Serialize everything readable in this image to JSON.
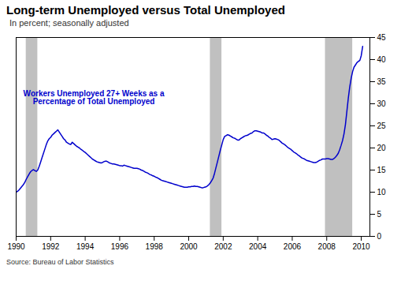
{
  "chart_data": {
    "type": "line",
    "title": "Long-term Unemployed versus Total Unemployed",
    "subtitle": "In percent; seasonally adjusted",
    "source": "Source: Bureau of Labor Statistics",
    "annotation": {
      "text": "Workers Unemployed 27+ Weeks as a\nPercentage of Total Unemployed",
      "x": 1994.5,
      "y": 33.0,
      "color": "#0000CC"
    },
    "bands": {
      "color": "#C0C0C0",
      "ranges": [
        [
          1990.58,
          1991.25
        ],
        [
          2001.25,
          2001.92
        ],
        [
          2007.92,
          2009.5
        ]
      ]
    },
    "color": "#0000CC",
    "grid": false,
    "xlim": [
      1990.0,
      2010.5
    ],
    "ylim": [
      0,
      45
    ],
    "xticks": [
      1990,
      1992,
      1994,
      1996,
      1998,
      2000,
      2002,
      2004,
      2006,
      2008,
      2010
    ],
    "yticks": [
      0,
      5,
      10,
      15,
      20,
      25,
      30,
      35,
      40,
      45
    ],
    "x": [
      1990.0,
      1990.083,
      1990.167,
      1990.25,
      1990.333,
      1990.417,
      1990.5,
      1990.583,
      1990.667,
      1990.75,
      1990.833,
      1990.917,
      1991.0,
      1991.083,
      1991.167,
      1991.25,
      1991.333,
      1991.417,
      1991.5,
      1991.583,
      1991.667,
      1991.75,
      1991.833,
      1991.917,
      1992.0,
      1992.083,
      1992.167,
      1992.25,
      1992.333,
      1992.417,
      1992.5,
      1992.583,
      1992.667,
      1992.75,
      1992.833,
      1992.917,
      1993.0,
      1993.083,
      1993.167,
      1993.25,
      1993.333,
      1993.417,
      1993.5,
      1993.583,
      1993.667,
      1993.75,
      1993.833,
      1993.917,
      1994.0,
      1994.083,
      1994.167,
      1994.25,
      1994.333,
      1994.417,
      1994.5,
      1994.583,
      1994.667,
      1994.75,
      1994.833,
      1994.917,
      1995.0,
      1995.083,
      1995.167,
      1995.25,
      1995.333,
      1995.417,
      1995.5,
      1995.583,
      1995.667,
      1995.75,
      1995.833,
      1995.917,
      1996.0,
      1996.083,
      1996.167,
      1996.25,
      1996.333,
      1996.417,
      1996.5,
      1996.583,
      1996.667,
      1996.75,
      1996.833,
      1996.917,
      1997.0,
      1997.083,
      1997.167,
      1997.25,
      1997.333,
      1997.417,
      1997.5,
      1997.583,
      1997.667,
      1997.75,
      1997.833,
      1997.917,
      1998.0,
      1998.083,
      1998.167,
      1998.25,
      1998.333,
      1998.417,
      1998.5,
      1998.583,
      1998.667,
      1998.75,
      1998.833,
      1998.917,
      1999.0,
      1999.083,
      1999.167,
      1999.25,
      1999.333,
      1999.417,
      1999.5,
      1999.583,
      1999.667,
      1999.75,
      1999.833,
      1999.917,
      2000.0,
      2000.083,
      2000.167,
      2000.25,
      2000.333,
      2000.417,
      2000.5,
      2000.583,
      2000.667,
      2000.75,
      2000.833,
      2000.917,
      2001.0,
      2001.083,
      2001.167,
      2001.25,
      2001.333,
      2001.417,
      2001.5,
      2001.583,
      2001.667,
      2001.75,
      2001.833,
      2001.917,
      2002.0,
      2002.083,
      2002.167,
      2002.25,
      2002.333,
      2002.417,
      2002.5,
      2002.583,
      2002.667,
      2002.75,
      2002.833,
      2002.917,
      2003.0,
      2003.083,
      2003.167,
      2003.25,
      2003.333,
      2003.417,
      2003.5,
      2003.583,
      2003.667,
      2003.75,
      2003.833,
      2003.917,
      2004.0,
      2004.083,
      2004.167,
      2004.25,
      2004.333,
      2004.417,
      2004.5,
      2004.583,
      2004.667,
      2004.75,
      2004.833,
      2004.917,
      2005.0,
      2005.083,
      2005.167,
      2005.25,
      2005.333,
      2005.417,
      2005.5,
      2005.583,
      2005.667,
      2005.75,
      2005.833,
      2005.917,
      2006.0,
      2006.083,
      2006.167,
      2006.25,
      2006.333,
      2006.417,
      2006.5,
      2006.583,
      2006.667,
      2006.75,
      2006.833,
      2006.917,
      2007.0,
      2007.083,
      2007.167,
      2007.25,
      2007.333,
      2007.417,
      2007.5,
      2007.583,
      2007.667,
      2007.75,
      2007.833,
      2007.917,
      2008.0,
      2008.083,
      2008.167,
      2008.25,
      2008.333,
      2008.417,
      2008.5,
      2008.583,
      2008.667,
      2008.75,
      2008.833,
      2008.917,
      2009.0,
      2009.083,
      2009.167,
      2009.25,
      2009.333,
      2009.417,
      2009.5,
      2009.583,
      2009.667,
      2009.75,
      2009.833,
      2009.917,
      2010.0,
      2010.083
    ],
    "values": [
      10.0,
      10.2,
      10.5,
      10.9,
      11.3,
      11.7,
      12.2,
      12.9,
      13.5,
      14.1,
      14.6,
      14.9,
      15.1,
      14.9,
      14.7,
      15.0,
      15.8,
      16.8,
      17.8,
      18.8,
      19.8,
      20.8,
      21.6,
      22.1,
      22.4,
      22.9,
      23.2,
      23.5,
      23.8,
      24.1,
      23.6,
      23.1,
      22.6,
      22.1,
      21.8,
      21.3,
      21.1,
      20.9,
      20.8,
      21.3,
      21.0,
      20.7,
      20.4,
      20.2,
      20.0,
      19.7,
      19.5,
      19.2,
      19.0,
      18.7,
      18.4,
      18.1,
      17.8,
      17.5,
      17.3,
      17.1,
      16.9,
      16.8,
      16.7,
      16.6,
      16.7,
      16.9,
      17.0,
      17.0,
      16.8,
      16.6,
      16.5,
      16.4,
      16.4,
      16.3,
      16.2,
      16.1,
      16.0,
      16.0,
      15.9,
      16.1,
      16.0,
      15.9,
      15.8,
      15.7,
      15.6,
      15.5,
      15.4,
      15.4,
      15.4,
      15.3,
      15.2,
      15.0,
      14.9,
      14.7,
      14.5,
      14.4,
      14.2,
      14.0,
      13.9,
      13.7,
      13.6,
      13.4,
      13.3,
      13.1,
      12.9,
      12.7,
      12.6,
      12.5,
      12.4,
      12.3,
      12.2,
      12.1,
      12.0,
      11.9,
      11.8,
      11.7,
      11.6,
      11.5,
      11.4,
      11.3,
      11.2,
      11.1,
      11.1,
      11.1,
      11.2,
      11.2,
      11.3,
      11.3,
      11.4,
      11.3,
      11.3,
      11.2,
      11.1,
      11.0,
      11.0,
      11.1,
      11.2,
      11.4,
      11.7,
      12.1,
      12.6,
      13.2,
      14.3,
      15.6,
      16.9,
      18.2,
      19.5,
      20.7,
      21.9,
      22.6,
      22.8,
      23.0,
      22.9,
      22.7,
      22.5,
      22.3,
      22.2,
      22.0,
      21.8,
      21.8,
      22.1,
      22.3,
      22.5,
      22.7,
      22.8,
      22.9,
      23.1,
      23.3,
      23.4,
      23.7,
      23.9,
      23.9,
      23.8,
      23.7,
      23.6,
      23.4,
      23.4,
      23.2,
      22.9,
      22.7,
      22.4,
      22.2,
      21.9,
      22.0,
      22.1,
      22.0,
      21.9,
      21.7,
      21.4,
      21.1,
      20.9,
      20.7,
      20.4,
      20.1,
      19.9,
      19.7,
      19.4,
      19.1,
      18.9,
      18.7,
      18.4,
      18.2,
      17.9,
      17.7,
      17.6,
      17.4,
      17.2,
      17.1,
      17.0,
      16.9,
      16.8,
      16.7,
      16.7,
      16.8,
      17.0,
      17.2,
      17.3,
      17.5,
      17.5,
      17.5,
      17.6,
      17.6,
      17.5,
      17.4,
      17.4,
      17.6,
      17.9,
      18.3,
      18.8,
      19.6,
      20.6,
      21.7,
      23.2,
      25.3,
      28.3,
      31.3,
      33.8,
      35.8,
      37.3,
      38.3,
      38.8,
      39.3,
      39.6,
      39.8,
      40.9,
      43.0
    ]
  }
}
